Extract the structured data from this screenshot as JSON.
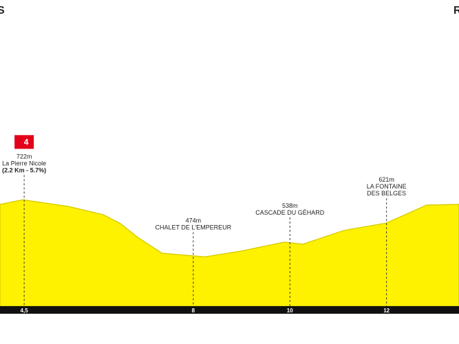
{
  "chart_data": {
    "type": "area",
    "start_label": "S",
    "finish_label": "R",
    "x": [
      4.0,
      4.47,
      5.42,
      6.14,
      6.49,
      6.85,
      7.35,
      8.24,
      8.99,
      9.88,
      10.27,
      11.12,
      12.0,
      12.83,
      13.5
    ],
    "values": [
      702,
      722,
      693,
      657,
      619,
      559,
      490,
      474,
      499,
      538,
      529,
      589,
      621,
      699,
      702
    ],
    "color": "#fff200",
    "xlim": [
      4.0,
      13.5
    ],
    "ylim": [
      260,
      1590
    ],
    "xticks": [
      {
        "value": 4.5,
        "label": "4,5"
      },
      8,
      10,
      12
    ],
    "annotations": [
      {
        "x": 4.5,
        "elevation": 722,
        "elevation_label": "722m",
        "lines": [
          "La Pierre Nicole"
        ],
        "detail": "(2.2 Km - 5.7%)",
        "category": "4"
      },
      {
        "x": 8,
        "elevation": 474,
        "elevation_label": "474m",
        "lines": [
          "CHALET DE L'EMPEREUR"
        ]
      },
      {
        "x": 10,
        "elevation": 538,
        "elevation_label": "538m",
        "lines": [
          "CASCADE DU GÉHARD"
        ]
      },
      {
        "x": 12,
        "elevation": 621,
        "elevation_label": "621m",
        "lines": [
          "LA FONTAINE",
          "DES BELGES"
        ]
      }
    ]
  }
}
